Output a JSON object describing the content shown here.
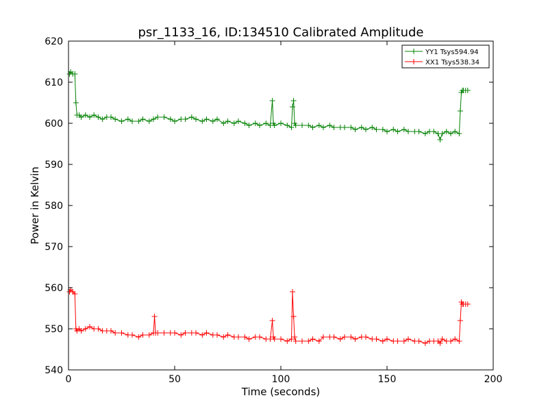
{
  "chart_data": {
    "type": "line",
    "title": "psr_1133_16, ID:134510 Calibrated Amplitude",
    "xlabel": "Time (seconds)",
    "ylabel": "Power in Kelvin",
    "xlim": [
      0,
      200
    ],
    "ylim": [
      540,
      620
    ],
    "x_ticks": [
      "0",
      "50",
      "100",
      "150",
      "200"
    ],
    "y_ticks": [
      "540",
      "550",
      "560",
      "570",
      "580",
      "590",
      "600",
      "610",
      "620"
    ],
    "grid": false,
    "legend_placement": "top-right",
    "marker": "plus",
    "series": [
      {
        "name": "YY1 Tsys594.94",
        "color": "#008000",
        "x": [
          0.5,
          1,
          2,
          3,
          3.5,
          4,
          5,
          6,
          8,
          10,
          12,
          14,
          16,
          18,
          20,
          22,
          25,
          28,
          30,
          33,
          35,
          38,
          40,
          42,
          45,
          48,
          50,
          53,
          55,
          58,
          60,
          63,
          65,
          68,
          70,
          73,
          75,
          78,
          80,
          83,
          85,
          88,
          90,
          93,
          95,
          96,
          96.5,
          97,
          100,
          103,
          105,
          105.5,
          106,
          106.5,
          107,
          110,
          113,
          115,
          118,
          120,
          123,
          125,
          128,
          130,
          133,
          135,
          138,
          140,
          143,
          145,
          148,
          150,
          153,
          155,
          158,
          160,
          163,
          165,
          168,
          170,
          172,
          174,
          175,
          176,
          178,
          180,
          182,
          184,
          184.5,
          185,
          185.5,
          186,
          187,
          188
        ],
        "values": [
          612,
          612.5,
          612,
          612,
          605,
          602,
          602,
          601.5,
          602,
          601.5,
          602,
          601.5,
          601,
          601.5,
          601.5,
          601,
          600.5,
          601,
          600.5,
          600.5,
          601,
          600.5,
          601,
          601.5,
          601.5,
          601,
          600.5,
          601,
          601,
          601.5,
          601,
          600.5,
          601,
          600.5,
          601,
          600,
          600.5,
          600,
          600.5,
          600,
          599.5,
          600,
          599.5,
          600,
          599.5,
          605.5,
          600,
          599.5,
          600,
          599.5,
          599,
          604,
          605.5,
          600,
          599.5,
          599.5,
          599.5,
          599,
          599.5,
          599,
          599.5,
          599,
          599,
          599,
          599,
          598.5,
          599,
          598.5,
          599,
          598.5,
          598.5,
          598,
          598.5,
          598,
          598.5,
          598,
          598,
          598,
          597.5,
          598,
          598,
          597.5,
          596,
          597.5,
          598,
          597.5,
          598,
          597.5,
          603,
          607.5,
          608,
          608,
          608,
          608
        ]
      },
      {
        "name": "XX1 Tsys538.34",
        "color": "#ff0000",
        "x": [
          0.5,
          1,
          2,
          3,
          3.5,
          4,
          5,
          6,
          8,
          10,
          12,
          14,
          16,
          18,
          20,
          22,
          25,
          28,
          30,
          33,
          35,
          38,
          40,
          40.5,
          41,
          42,
          45,
          48,
          50,
          53,
          55,
          58,
          60,
          63,
          65,
          68,
          70,
          73,
          75,
          78,
          80,
          83,
          85,
          88,
          90,
          93,
          95,
          96,
          96.5,
          97,
          100,
          103,
          105,
          105.5,
          106,
          106.5,
          107,
          110,
          113,
          115,
          118,
          120,
          123,
          125,
          128,
          130,
          133,
          135,
          138,
          140,
          143,
          145,
          148,
          150,
          153,
          155,
          158,
          160,
          163,
          165,
          168,
          170,
          172,
          174,
          175,
          176,
          178,
          180,
          182,
          184,
          184.5,
          185,
          185.5,
          186,
          187,
          188
        ],
        "values": [
          559,
          559.5,
          559,
          558.5,
          550,
          549.5,
          550,
          549.5,
          550,
          550.5,
          550,
          550,
          549.5,
          549.5,
          549.5,
          549,
          549,
          548.5,
          548.5,
          548,
          548.5,
          548.5,
          549,
          553,
          549,
          549,
          549,
          549,
          549,
          548.5,
          549,
          549,
          549,
          548.5,
          549,
          548.5,
          548.5,
          548,
          548.5,
          548,
          548,
          548,
          547.5,
          548,
          548,
          547.5,
          547.5,
          552,
          548,
          547.5,
          547.5,
          547,
          547.5,
          559,
          553,
          548,
          547,
          547,
          547,
          547.5,
          547,
          548,
          548,
          548,
          547.5,
          548,
          548,
          547.5,
          548,
          548,
          547.5,
          547.5,
          547,
          547.5,
          547,
          547,
          547,
          547.5,
          547,
          547,
          546.5,
          547,
          547,
          547,
          546.5,
          547.5,
          547,
          547,
          547.5,
          547,
          552,
          556.5,
          556,
          556,
          556,
          556
        ]
      }
    ]
  }
}
